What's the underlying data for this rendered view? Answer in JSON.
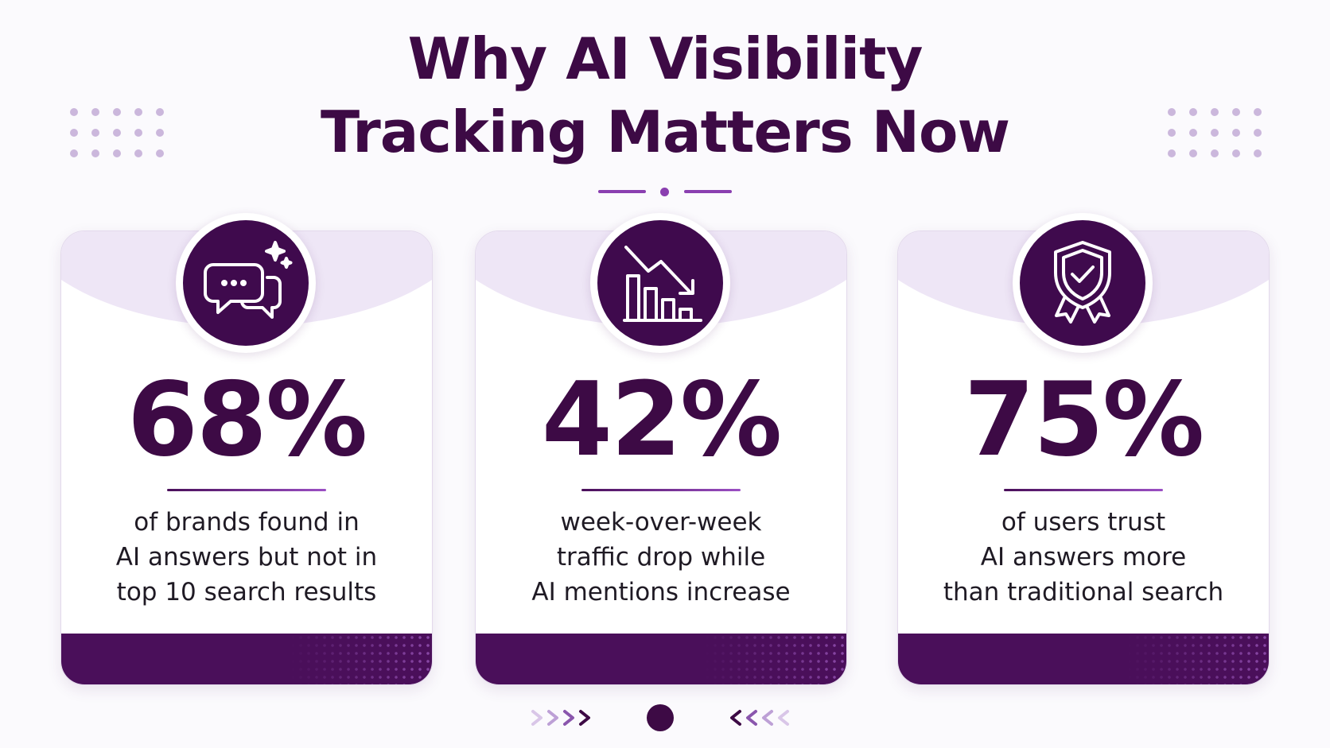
{
  "title": {
    "line1": "Why AI Visibility",
    "line2": "Tracking Matters Now"
  },
  "colors": {
    "primary": "#3d0a45",
    "accent": "#8a3fb0",
    "footer": "#4a0f5a",
    "light": "#eee6f6"
  },
  "cards": [
    {
      "icon": "chat-bubbles-icon",
      "stat": "68%",
      "lines": [
        "of brands found in",
        "AI answers but not in",
        "top 10 search results"
      ]
    },
    {
      "icon": "declining-chart-icon",
      "stat": "42%",
      "lines": [
        "week-over-week",
        "traffic drop while",
        "AI mentions increase"
      ]
    },
    {
      "icon": "shield-check-icon",
      "stat": "75%",
      "lines": [
        "of users trust",
        "AI answers more",
        "than traditional search"
      ]
    }
  ]
}
